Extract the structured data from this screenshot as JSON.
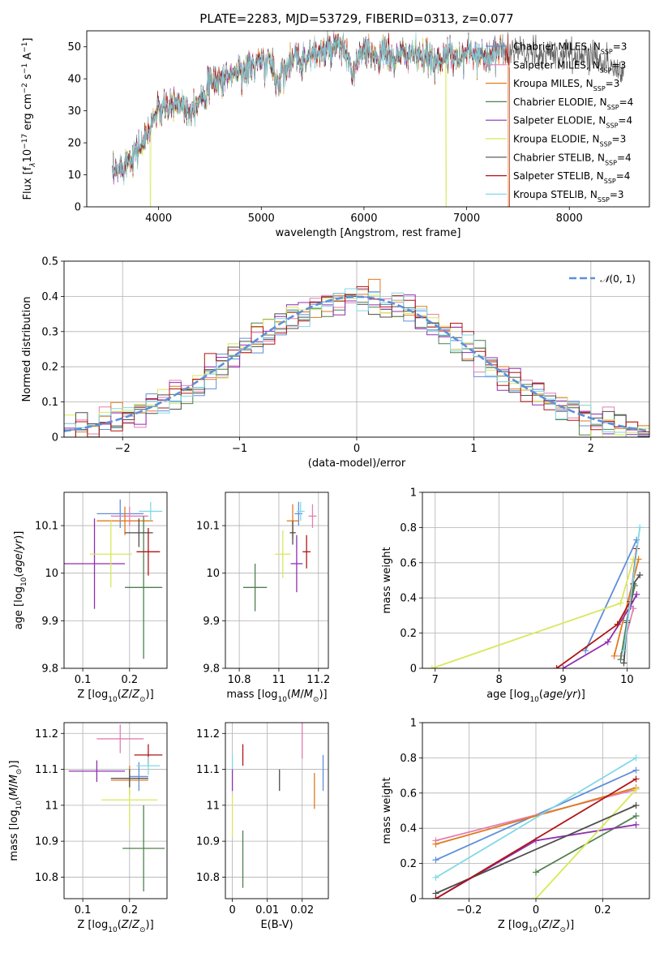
{
  "colors": [
    "#5f8fd9",
    "#e57eb2",
    "#e07a1f",
    "#4f7f4f",
    "#8f2fb0",
    "#d8e85a",
    "#4d4d4d",
    "#b01414",
    "#82d8e6"
  ],
  "chart_data": [
    {
      "id": "spectrum",
      "type": "line",
      "title": "PLATE=2283, MJD=53729, FIBERID=0313, z=0.077",
      "xlabel": "wavelength [Angstrom, rest frame]",
      "ylabel": "Flux [fλ10⁻¹⁷ erg cm⁻² s⁻¹ A⁻¹]",
      "xlim": [
        3300,
        8780
      ],
      "ylim": [
        0,
        55
      ],
      "xticks": [
        4000,
        5000,
        6000,
        7000,
        8000
      ],
      "yticks": [
        0,
        10,
        20,
        30,
        40,
        50
      ],
      "grid": false,
      "legend_position": "top-right",
      "spectrum_x": [
        3550,
        3600,
        3700,
        3800,
        3850,
        3900,
        3950,
        4000,
        4100,
        4200,
        4300,
        4400,
        4500,
        4600,
        4700,
        4800,
        4850,
        4900,
        5000,
        5100,
        5175,
        5200,
        5300,
        5400,
        5500,
        5600,
        5700,
        5800,
        5890,
        5950,
        6000,
        6100,
        6200,
        6300,
        6400,
        6500,
        6563,
        6600,
        6700,
        6800,
        6900,
        7000,
        7100,
        7200,
        7300,
        7400,
        7500,
        7600,
        7700,
        7800,
        7900,
        8000,
        8100,
        8200,
        8300,
        8400,
        8500
      ],
      "spectrum_y": [
        10,
        11,
        15,
        18,
        20,
        23,
        28,
        30,
        31,
        33,
        30,
        34,
        38,
        40,
        41,
        43,
        42,
        44,
        45,
        45,
        37,
        43,
        46,
        46,
        48,
        48,
        49,
        50,
        41,
        47,
        48,
        47,
        48,
        46,
        48,
        48,
        45,
        47,
        46,
        47,
        47,
        48,
        48,
        47,
        49,
        48,
        49,
        48,
        47,
        48,
        48,
        48,
        47,
        47,
        46,
        44,
        42
      ],
      "series": [
        {
          "name": "Chabrier MILES, N<sub>SSP</sub>=3",
          "dips": []
        },
        {
          "name": "Salpeter MILES, N<sub>SSP</sub>=3",
          "dips": []
        },
        {
          "name": "Kroupa MILES, N<sub>SSP</sub>=3",
          "dips": [
            7410
          ]
        },
        {
          "name": "Chabrier ELODIE, N<sub>SSP</sub>=4",
          "dips": []
        },
        {
          "name": "Salpeter ELODIE, N<sub>SSP</sub>=4",
          "dips": []
        },
        {
          "name": "Kroupa ELODIE, N<sub>SSP</sub>=3",
          "dips": [
            3920,
            6800
          ]
        },
        {
          "name": "Chabrier STELIB, N<sub>SSP</sub>=4",
          "dips": []
        },
        {
          "name": "Salpeter STELIB, N<sub>SSP</sub>=4",
          "dips": [
            7420
          ]
        },
        {
          "name": "Kroupa STELIB, N<sub>SSP</sub>=3",
          "dips": []
        }
      ]
    },
    {
      "id": "residuals",
      "type": "histogram",
      "xlabel": "(data-model)/error",
      "ylabel": "Normed distribution",
      "xlim": [
        -2.5,
        2.5
      ],
      "ylim": [
        0,
        0.5
      ],
      "xticks": [
        -2,
        -1,
        0,
        1,
        2
      ],
      "yticks": [
        0.0,
        0.1,
        0.2,
        0.3,
        0.4,
        0.5
      ],
      "grid": true,
      "legend_position": "top-right",
      "reference_label": "𝒩(0, 1)",
      "bins": [
        -2.5,
        2.5,
        50
      ]
    },
    {
      "id": "age_vs_Z",
      "type": "scatter",
      "xlabel": "Z [log₁₀(Z/Z⊙)]",
      "ylabel": "age  [log₁₀(age/yr)]",
      "xlim": [
        0.06,
        0.28
      ],
      "ylim": [
        9.8,
        10.17
      ],
      "xticks": [
        0.1,
        0.2
      ],
      "yticks": [
        9.8,
        9.9,
        10.0,
        10.1
      ],
      "grid": true,
      "points": [
        {
          "x": 0.18,
          "xe": 0.05,
          "y": 10.125,
          "ye": 0.03
        },
        {
          "x": 0.2,
          "xe": 0.04,
          "y": 10.12,
          "ye": 0.02
        },
        {
          "x": 0.19,
          "xe": 0.06,
          "y": 10.11,
          "ye": 0.03
        },
        {
          "x": 0.23,
          "xe": 0.04,
          "y": 9.97,
          "ye": 0.15
        },
        {
          "x": 0.125,
          "xe": 0.065,
          "y": 10.02,
          "ye": 0.095
        },
        {
          "x": 0.16,
          "xe": 0.045,
          "y": 10.04,
          "ye": 0.07
        },
        {
          "x": 0.22,
          "xe": 0.03,
          "y": 10.085,
          "ye": 0.03
        },
        {
          "x": 0.24,
          "xe": 0.025,
          "y": 10.045,
          "ye": 0.05
        },
        {
          "x": 0.245,
          "xe": 0.025,
          "y": 10.13,
          "ye": 0.02
        }
      ]
    },
    {
      "id": "age_vs_mass",
      "type": "scatter",
      "xlabel": "mass [log₁₀(M/M⊙)]",
      "ylabel": "",
      "xlim": [
        10.73,
        11.25
      ],
      "ylim": [
        9.8,
        10.17
      ],
      "xticks": [
        10.8,
        11.0,
        11.2
      ],
      "yticks": [
        9.8,
        9.9,
        10.0,
        10.1
      ],
      "grid": true,
      "points": [
        {
          "x": 11.1,
          "xe": 0.02,
          "y": 10.125,
          "ye": 0.025
        },
        {
          "x": 11.17,
          "xe": 0.02,
          "y": 10.12,
          "ye": 0.025
        },
        {
          "x": 11.07,
          "xe": 0.03,
          "y": 10.11,
          "ye": 0.035
        },
        {
          "x": 10.88,
          "xe": 0.06,
          "y": 9.97,
          "ye": 0.05
        },
        {
          "x": 11.09,
          "xe": 0.03,
          "y": 10.02,
          "ye": 0.06
        },
        {
          "x": 11.02,
          "xe": 0.04,
          "y": 10.04,
          "ye": 0.05
        },
        {
          "x": 11.07,
          "xe": 0.015,
          "y": 10.085,
          "ye": 0.025
        },
        {
          "x": 11.14,
          "xe": 0.02,
          "y": 10.045,
          "ye": 0.035
        },
        {
          "x": 11.11,
          "xe": 0.02,
          "y": 10.13,
          "ye": 0.02
        }
      ]
    },
    {
      "id": "weight_vs_age",
      "type": "line",
      "xlabel": "age  [log₁₀(age/yr)]",
      "ylabel": "mass weight",
      "xlim": [
        6.8,
        10.35
      ],
      "ylim": [
        0,
        1
      ],
      "xticks": [
        7,
        8,
        9,
        10
      ],
      "yticks": [
        0.0,
        0.2,
        0.4,
        0.6,
        0.8,
        1.0
      ],
      "grid": true,
      "lines": [
        {
          "x": [
            9.35,
            10.15
          ],
          "y": [
            0.1,
            0.73
          ]
        },
        {
          "x": [
            9.9,
            10.1
          ],
          "y": [
            0.07,
            0.34
          ]
        },
        {
          "x": [
            9.8,
            10.18
          ],
          "y": [
            0.07,
            0.62
          ]
        },
        {
          "x": [
            9.9,
            10.0,
            10.12
          ],
          "y": [
            0.05,
            0.27,
            0.47
          ]
        },
        {
          "x": [
            9.0,
            9.7,
            10.05,
            10.15
          ],
          "y": [
            0.0,
            0.15,
            0.35,
            0.42
          ]
        },
        {
          "x": [
            6.95,
            9.9,
            10.1
          ],
          "y": [
            0.0,
            0.37,
            0.62
          ]
        },
        {
          "x": [
            9.95,
            10.0,
            10.1,
            10.2
          ],
          "y": [
            0.03,
            0.26,
            0.48,
            0.53
          ]
        },
        {
          "x": [
            8.9,
            9.85,
            10.05,
            10.15
          ],
          "y": [
            0.0,
            0.25,
            0.38,
            0.68
          ]
        },
        {
          "x": [
            9.95,
            10.2
          ],
          "y": [
            0.1,
            0.8
          ]
        }
      ]
    },
    {
      "id": "mass_vs_Z",
      "type": "scatter",
      "xlabel": "Z [log₁₀(Z/Z⊙)]",
      "ylabel": "mass [log₁₀(M/M⊙)]",
      "xlim": [
        0.06,
        0.28
      ],
      "ylim": [
        10.74,
        11.23
      ],
      "xticks": [
        0.1,
        0.2
      ],
      "yticks": [
        10.8,
        10.9,
        11.0,
        11.1,
        11.2
      ],
      "grid": true,
      "points": [
        {
          "x": 0.22,
          "xe": 0.02,
          "y": 11.08,
          "ye": 0.04
        },
        {
          "x": 0.18,
          "xe": 0.05,
          "y": 11.185,
          "ye": 0.04
        },
        {
          "x": 0.2,
          "xe": 0.04,
          "y": 11.07,
          "ye": 0.04
        },
        {
          "x": 0.23,
          "xe": 0.045,
          "y": 10.88,
          "ye": 0.12
        },
        {
          "x": 0.13,
          "xe": 0.06,
          "y": 11.095,
          "ye": 0.03
        },
        {
          "x": 0.2,
          "xe": 0.06,
          "y": 11.015,
          "ye": 0.08
        },
        {
          "x": 0.2,
          "xe": 0.04,
          "y": 11.075,
          "ye": 0.025
        },
        {
          "x": 0.24,
          "xe": 0.03,
          "y": 11.14,
          "ye": 0.03
        },
        {
          "x": 0.24,
          "xe": 0.025,
          "y": 11.11,
          "ye": 0.025
        }
      ]
    },
    {
      "id": "mass_vs_ebv",
      "type": "scatter",
      "xlabel": "E(B-V)",
      "ylabel": "",
      "xlim": [
        -0.002,
        0.0275
      ],
      "ylim": [
        10.74,
        11.23
      ],
      "xticks": [
        0.0,
        0.01,
        0.02
      ],
      "yticks": [
        10.8,
        10.9,
        11.0,
        11.1,
        11.2
      ],
      "grid": true,
      "points": [
        {
          "x": 0.026,
          "xe": 0,
          "y": 11.09,
          "ye": 0.05
        },
        {
          "x": 0.02,
          "xe": 0,
          "y": 11.18,
          "ye": 0.05
        },
        {
          "x": 0.0235,
          "xe": 0,
          "y": 11.04,
          "ye": 0.05
        },
        {
          "x": 0.003,
          "xe": 0,
          "y": 10.85,
          "ye": 0.08
        },
        {
          "x": 0.0,
          "xe": 0,
          "y": 11.07,
          "ye": 0.03
        },
        {
          "x": 0.0,
          "xe": 0,
          "y": 10.97,
          "ye": 0.06
        },
        {
          "x": 0.0135,
          "xe": 0,
          "y": 11.07,
          "ye": 0.03
        },
        {
          "x": 0.003,
          "xe": 0,
          "y": 11.14,
          "ye": 0.03
        },
        {
          "x": 0.0,
          "xe": 0,
          "y": 11.12,
          "ye": 0.02
        }
      ]
    },
    {
      "id": "weight_vs_Z",
      "type": "line",
      "xlabel": "Z [log₁₀(Z/Z⊙)]",
      "ylabel": "mass weight",
      "xlim": [
        -0.34,
        0.34
      ],
      "ylim": [
        0,
        1
      ],
      "xticks": [
        -0.2,
        0.0,
        0.2
      ],
      "yticks": [
        0.0,
        0.2,
        0.4,
        0.6,
        0.8,
        1.0
      ],
      "grid": true,
      "lines": [
        {
          "x": [
            -0.3,
            0.3
          ],
          "y": [
            0.22,
            0.73
          ]
        },
        {
          "x": [
            -0.3,
            0.3
          ],
          "y": [
            0.33,
            0.62
          ]
        },
        {
          "x": [
            -0.3,
            0.3
          ],
          "y": [
            0.31,
            0.63
          ]
        },
        {
          "x": [
            0.0,
            0.3
          ],
          "y": [
            0.15,
            0.47
          ]
        },
        {
          "x": [
            -0.3,
            0.0,
            0.3
          ],
          "y": [
            0.0,
            0.33,
            0.42
          ]
        },
        {
          "x": [
            0.0,
            0.3
          ],
          "y": [
            0.0,
            0.62
          ]
        },
        {
          "x": [
            -0.3,
            0.3
          ],
          "y": [
            0.03,
            0.53
          ]
        },
        {
          "x": [
            -0.3,
            0.3
          ],
          "y": [
            0.0,
            0.68
          ]
        },
        {
          "x": [
            -0.3,
            0.3
          ],
          "y": [
            0.12,
            0.8
          ]
        }
      ]
    }
  ]
}
